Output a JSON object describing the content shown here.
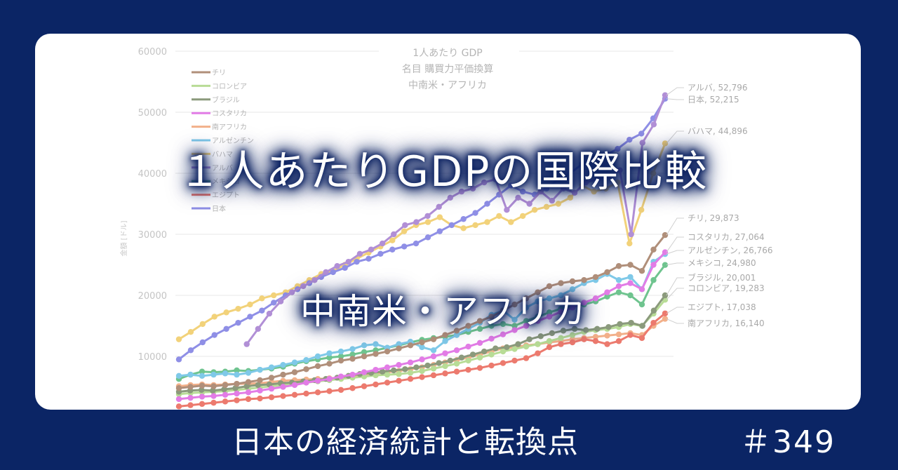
{
  "headline": {
    "main": "１人あたりGDPの国際比較",
    "sub": "中南米・アフリカ"
  },
  "footer": {
    "series_title": "日本の経済統計と転換点",
    "episode": "＃349"
  },
  "colors": {
    "background": "#0b2565",
    "panel": "#ffffff"
  },
  "chart_data": {
    "type": "line",
    "title": "1人あたり GDP",
    "subtitle": [
      "名目 購買力平価換算",
      "中南米・アフリカ"
    ],
    "xlabel": "",
    "ylabel": "金額 [ドル]",
    "ylim": [
      0,
      60000
    ],
    "yticks": [
      10000,
      20000,
      30000,
      40000,
      50000,
      60000
    ],
    "grid": true,
    "legend_position": "upper-left",
    "legend": [
      "チリ",
      "コロンビア",
      "ブラジル",
      "コスタリカ",
      "南アフリカ",
      "アルゼンチン",
      "バハマ",
      "アルバ",
      "メキシコ",
      "エジプト",
      "日本"
    ],
    "series": [
      {
        "name": "アルバ",
        "color": "#b18fd6",
        "start_index": 6,
        "end_label": "アルバ, 52,796",
        "values": [
          12000,
          14500,
          17000,
          19000,
          20500,
          21500,
          22500,
          23800,
          24800,
          25500,
          26800,
          27500,
          28500,
          30000,
          31500,
          32000,
          33000,
          34500,
          36000,
          37000,
          37500,
          38500,
          39000,
          34000,
          36000,
          35000,
          37000,
          35500,
          37500,
          36800,
          38500,
          39000,
          39500,
          40500,
          30000,
          45000,
          48000,
          52796
        ]
      },
      {
        "name": "日本",
        "color": "#8f8fe6",
        "start_index": 0,
        "end_label": "日本, 52,215",
        "values": [
          9500,
          11000,
          12300,
          13500,
          14500,
          15500,
          16500,
          17500,
          18800,
          20000,
          21000,
          22000,
          23000,
          23800,
          24500,
          25500,
          26000,
          26800,
          27500,
          28000,
          28500,
          29500,
          30500,
          31500,
          32500,
          33500,
          35000,
          36500,
          38000,
          37000,
          36500,
          37500,
          39000,
          40000,
          41500,
          42500,
          43000,
          44000,
          45500,
          46500,
          49000,
          52215
        ]
      },
      {
        "name": "バハマ",
        "color": "#f2d27a",
        "start_index": 0,
        "end_label": "バハマ, 44,896",
        "values": [
          12800,
          14000,
          15300,
          16500,
          17200,
          17800,
          18500,
          19500,
          20000,
          20500,
          21500,
          22500,
          23500,
          24000,
          25000,
          26000,
          27000,
          28000,
          29000,
          30500,
          31500,
          32000,
          32800,
          31500,
          31000,
          31500,
          32000,
          33000,
          32000,
          33000,
          34000,
          34500,
          35000,
          36000,
          38000,
          37000,
          37500,
          38500,
          28500,
          34000,
          40000,
          44896
        ]
      },
      {
        "name": "チリ",
        "color": "#b08f7a",
        "start_index": 0,
        "end_label": "チリ, 29,873",
        "values": [
          4800,
          5000,
          5200,
          5100,
          5300,
          5500,
          5800,
          6100,
          6500,
          7000,
          7400,
          7900,
          8400,
          8800,
          9300,
          9600,
          10000,
          10400,
          10800,
          11300,
          11800,
          12300,
          12800,
          13500,
          14200,
          15000,
          15800,
          16500,
          17500,
          18500,
          19500,
          20500,
          21500,
          22000,
          22300,
          22500,
          23000,
          23800,
          24800,
          25000,
          24000,
          27500,
          29873
        ]
      },
      {
        "name": "コスタリカ",
        "color": "#e27ce6",
        "start_index": 0,
        "end_label": "コスタリカ, 27,064",
        "values": [
          3000,
          3200,
          3400,
          3500,
          3700,
          3900,
          4100,
          4400,
          4700,
          5000,
          5300,
          5700,
          6000,
          6300,
          6700,
          7000,
          7400,
          7800,
          8200,
          8600,
          9000,
          9500,
          10000,
          10500,
          11000,
          11600,
          12200,
          12900,
          13600,
          14300,
          15000,
          15800,
          16500,
          17300,
          18000,
          18800,
          19500,
          20500,
          21500,
          22000,
          21000,
          25000,
          27064
        ]
      },
      {
        "name": "アルゼンチン",
        "color": "#7fc9e8",
        "start_index": 0,
        "end_label": "アルゼンチン, 26,766",
        "values": [
          6800,
          7000,
          6800,
          7000,
          7200,
          7000,
          7300,
          7800,
          8200,
          8600,
          9000,
          9400,
          10000,
          10500,
          10800,
          11200,
          11800,
          12000,
          11400,
          12000,
          12400,
          11500,
          11000,
          12500,
          13500,
          14500,
          15500,
          16800,
          17500,
          16000,
          18000,
          19000,
          19500,
          20000,
          21000,
          22000,
          22500,
          23500,
          22500,
          23000,
          21000,
          25500,
          26766
        ]
      },
      {
        "name": "メキシコ",
        "color": "#6fc48f",
        "start_index": 0,
        "end_label": "メキシコ, 24,980",
        "values": [
          6300,
          7000,
          7500,
          7400,
          7500,
          7700,
          7600,
          7800,
          8000,
          8300,
          8800,
          9200,
          9500,
          9800,
          10000,
          10300,
          10700,
          11000,
          11400,
          11800,
          12300,
          12700,
          13000,
          13200,
          13500,
          14000,
          14500,
          15000,
          15300,
          15000,
          15800,
          16500,
          17200,
          17800,
          18200,
          18500,
          19000,
          19800,
          20500,
          20000,
          18500,
          22500,
          24980
        ]
      },
      {
        "name": "ブラジル",
        "color": "#8b9a7c",
        "start_index": 0,
        "end_label": "ブラジル, 20,001",
        "values": [
          4200,
          4400,
          4500,
          4400,
          4600,
          4800,
          5100,
          5300,
          5400,
          5600,
          5700,
          5900,
          6100,
          6300,
          6500,
          6800,
          7100,
          7300,
          7500,
          7700,
          7900,
          8200,
          8500,
          8900,
          9300,
          9800,
          10300,
          10800,
          11300,
          11500,
          12000,
          12800,
          13300,
          13800,
          14200,
          14500,
          14300,
          14500,
          14800,
          15300,
          15500,
          15000,
          17500,
          20001
        ]
      },
      {
        "name": "コロンビア",
        "color": "#b8dc96",
        "start_index": 0,
        "end_label": "コロンビア, 19,283",
        "values": [
          3800,
          4000,
          4100,
          4200,
          4300,
          4500,
          4700,
          4900,
          5100,
          5300,
          5500,
          5700,
          5900,
          6100,
          6300,
          6500,
          6700,
          6900,
          7000,
          7100,
          7300,
          7600,
          8000,
          8400,
          8800,
          9300,
          9800,
          10300,
          10800,
          11200,
          11600,
          12000,
          12500,
          13000,
          13500,
          14000,
          14300,
          14500,
          14800,
          15300,
          15000,
          17000,
          19283
        ]
      },
      {
        "name": "エジプト",
        "color": "#ec7a6e",
        "start_index": 0,
        "end_label": "エジプト, 17,038",
        "values": [
          1800,
          2000,
          2200,
          2400,
          2600,
          2800,
          3000,
          3100,
          3300,
          3500,
          3700,
          3900,
          4100,
          4300,
          4500,
          4800,
          5100,
          5400,
          5700,
          6000,
          6300,
          6600,
          6900,
          7200,
          7500,
          7800,
          8100,
          8500,
          8900,
          9300,
          9700,
          10500,
          11500,
          12000,
          12300,
          12800,
          12500,
          12000,
          12500,
          13500,
          13000,
          15500,
          17038
        ]
      },
      {
        "name": "南アフリカ",
        "color": "#f2b08a",
        "start_index": 0,
        "end_label": "南アフリカ, 16,140",
        "values": [
          5100,
          5300,
          5400,
          5300,
          5400,
          5500,
          5500,
          5600,
          5800,
          6000,
          6100,
          6200,
          6300,
          6400,
          6500,
          6700,
          7000,
          7200,
          7400,
          7600,
          7900,
          8200,
          8600,
          9000,
          9400,
          9800,
          10300,
          10800,
          11300,
          11500,
          11800,
          12000,
          12300,
          12500,
          12800,
          13000,
          13200,
          13400,
          13600,
          13800,
          13500,
          15000,
          16140
        ]
      }
    ]
  }
}
